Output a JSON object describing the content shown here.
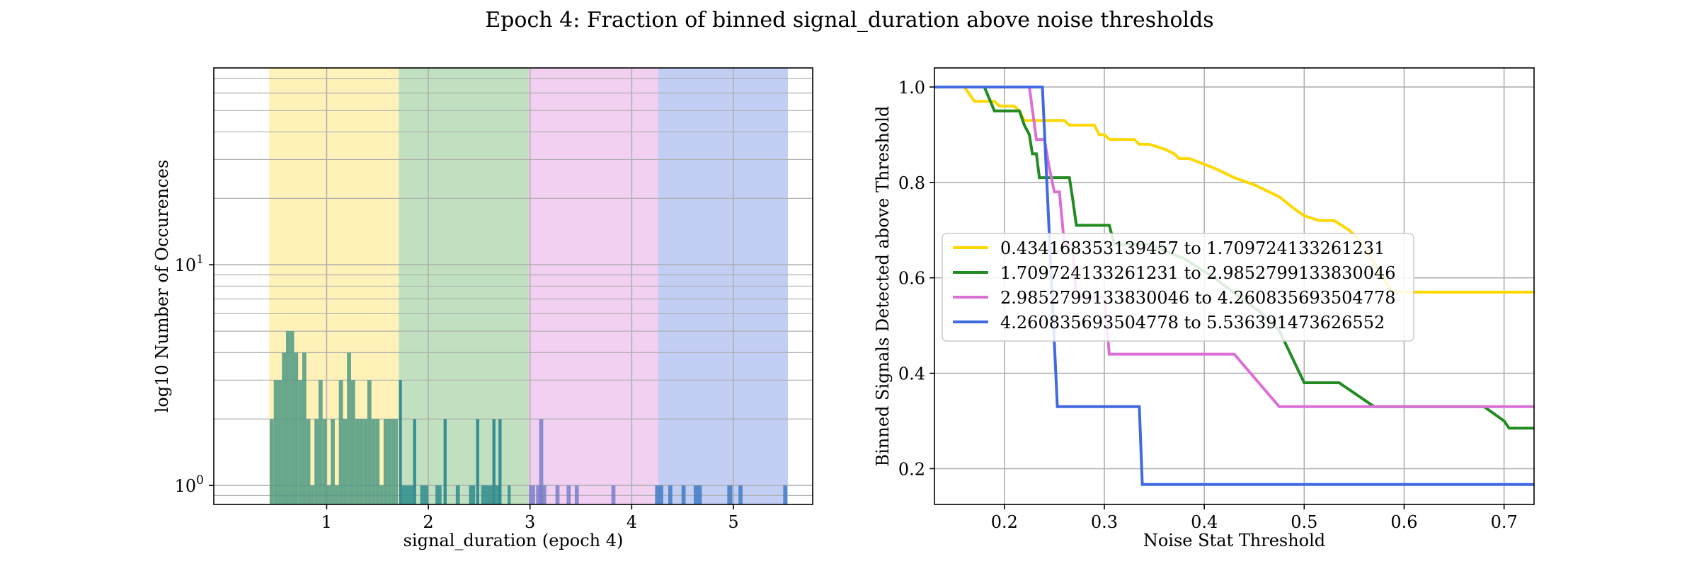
{
  "figure": {
    "title": "Epoch 4: Fraction of binned signal_duration above noise thresholds"
  },
  "chart_data": [
    {
      "type": "bar",
      "subtype": "histogram",
      "xlabel": "signal_duration (epoch 4)",
      "ylabel": "log10 Number of Occurences",
      "yscale": "log",
      "xlim": [
        -0.11,
        5.78
      ],
      "ylim": [
        0.82,
        78
      ],
      "xticks": [
        1,
        2,
        3,
        4,
        5
      ],
      "yticks": [
        {
          "value": 1,
          "label": "10^0"
        },
        {
          "value": 10,
          "label": "10^1"
        }
      ],
      "grid": true,
      "bands": [
        {
          "from": 0.434168353139457,
          "to": 1.709724133261231,
          "color": "#FFE880"
        },
        {
          "from": 1.709724133261231,
          "to": 2.9852799133830046,
          "color": "#8DC68D"
        },
        {
          "from": 2.9852799133830046,
          "to": 4.260835693504778,
          "color": "#E5A9E5"
        },
        {
          "from": 4.260835693504778,
          "to": 5.536391473626552,
          "color": "#8FA6EB"
        }
      ],
      "histograms": [
        {
          "color": "#4d9a84",
          "bars": [
            {
              "x": 0.44,
              "w": 0.04,
              "v": 2
            },
            {
              "x": 0.48,
              "w": 0.04,
              "v": 3
            },
            {
              "x": 0.52,
              "w": 0.04,
              "v": 3
            },
            {
              "x": 0.56,
              "w": 0.04,
              "v": 4
            },
            {
              "x": 0.6,
              "w": 0.04,
              "v": 5
            },
            {
              "x": 0.64,
              "w": 0.04,
              "v": 5
            },
            {
              "x": 0.68,
              "w": 0.04,
              "v": 4
            },
            {
              "x": 0.72,
              "w": 0.04,
              "v": 3
            },
            {
              "x": 0.76,
              "w": 0.04,
              "v": 4
            },
            {
              "x": 0.8,
              "w": 0.04,
              "v": 2
            },
            {
              "x": 0.84,
              "w": 0.04,
              "v": 1
            },
            {
              "x": 0.88,
              "w": 0.04,
              "v": 2
            },
            {
              "x": 0.92,
              "w": 0.04,
              "v": 3
            },
            {
              "x": 0.96,
              "w": 0.04,
              "v": 2
            },
            {
              "x": 1.0,
              "w": 0.04,
              "v": 1
            },
            {
              "x": 1.04,
              "w": 0.04,
              "v": 2
            },
            {
              "x": 1.08,
              "w": 0.04,
              "v": 1
            },
            {
              "x": 1.12,
              "w": 0.04,
              "v": 3
            },
            {
              "x": 1.16,
              "w": 0.04,
              "v": 2
            },
            {
              "x": 1.2,
              "w": 0.04,
              "v": 4
            },
            {
              "x": 1.24,
              "w": 0.04,
              "v": 3
            },
            {
              "x": 1.28,
              "w": 0.04,
              "v": 2
            },
            {
              "x": 1.32,
              "w": 0.04,
              "v": 2
            },
            {
              "x": 1.36,
              "w": 0.04,
              "v": 2
            },
            {
              "x": 1.4,
              "w": 0.04,
              "v": 3
            },
            {
              "x": 1.44,
              "w": 0.04,
              "v": 2
            },
            {
              "x": 1.48,
              "w": 0.04,
              "v": 2
            },
            {
              "x": 1.52,
              "w": 0.04,
              "v": 1
            },
            {
              "x": 1.56,
              "w": 0.04,
              "v": 2
            },
            {
              "x": 1.6,
              "w": 0.04,
              "v": 2
            },
            {
              "x": 1.64,
              "w": 0.04,
              "v": 2
            },
            {
              "x": 1.68,
              "w": 0.02,
              "v": 2
            }
          ]
        },
        {
          "color": "#1f7f8a",
          "bars": [
            {
              "x": 1.71,
              "w": 0.03,
              "v": 3
            },
            {
              "x": 1.85,
              "w": 0.03,
              "v": 2
            },
            {
              "x": 2.15,
              "w": 0.03,
              "v": 2
            },
            {
              "x": 2.47,
              "w": 0.03,
              "v": 2
            },
            {
              "x": 2.63,
              "w": 0.03,
              "v": 2
            },
            {
              "x": 2.69,
              "w": 0.03,
              "v": 2
            }
          ]
        },
        {
          "color": "#2e8c8c",
          "bars": [
            {
              "x": 1.73,
              "w": 0.12,
              "v": 1
            },
            {
              "x": 1.92,
              "w": 0.08,
              "v": 1
            },
            {
              "x": 2.07,
              "w": 0.06,
              "v": 1
            },
            {
              "x": 2.27,
              "w": 0.04,
              "v": 1
            },
            {
              "x": 2.4,
              "w": 0.06,
              "v": 1
            },
            {
              "x": 2.52,
              "w": 0.11,
              "v": 1
            },
            {
              "x": 2.66,
              "w": 0.05,
              "v": 1
            },
            {
              "x": 2.78,
              "w": 0.03,
              "v": 1
            }
          ]
        },
        {
          "color": "#7b7fc9",
          "bars": [
            {
              "x": 3.09,
              "w": 0.04,
              "v": 2
            },
            {
              "x": 2.99,
              "w": 0.06,
              "v": 1
            },
            {
              "x": 3.06,
              "w": 0.1,
              "v": 1
            },
            {
              "x": 3.25,
              "w": 0.04,
              "v": 1
            },
            {
              "x": 3.36,
              "w": 0.04,
              "v": 1
            },
            {
              "x": 3.44,
              "w": 0.04,
              "v": 1
            },
            {
              "x": 3.8,
              "w": 0.04,
              "v": 1
            }
          ]
        },
        {
          "color": "#3f7dc4",
          "bars": [
            {
              "x": 4.23,
              "w": 0.08,
              "v": 1
            },
            {
              "x": 4.36,
              "w": 0.04,
              "v": 1
            },
            {
              "x": 4.49,
              "w": 0.04,
              "v": 1
            },
            {
              "x": 4.61,
              "w": 0.08,
              "v": 1
            },
            {
              "x": 4.94,
              "w": 0.05,
              "v": 1
            },
            {
              "x": 5.05,
              "w": 0.04,
              "v": 1
            },
            {
              "x": 5.49,
              "w": 0.04,
              "v": 1
            }
          ]
        }
      ]
    },
    {
      "type": "line",
      "xlabel": "Noise Stat Threshold",
      "ylabel": "Binned Signals Detected above Threshold",
      "xlim": [
        0.13,
        0.73
      ],
      "ylim": [
        0.125,
        1.04
      ],
      "xticks": [
        0.2,
        0.3,
        0.4,
        0.5,
        0.6,
        0.7
      ],
      "yticks": [
        0.2,
        0.4,
        0.6,
        0.8,
        1.0
      ],
      "grid": true,
      "legend_placement": "center-left",
      "series": [
        {
          "name": "0.434168353139457 to 1.709724133261231",
          "color": "#FFD700",
          "points": [
            [
              0.13,
              1.0
            ],
            [
              0.16,
              1.0
            ],
            [
              0.17,
              0.97
            ],
            [
              0.19,
              0.97
            ],
            [
              0.195,
              0.96
            ],
            [
              0.21,
              0.96
            ],
            [
              0.215,
              0.95
            ],
            [
              0.22,
              0.93
            ],
            [
              0.26,
              0.93
            ],
            [
              0.265,
              0.92
            ],
            [
              0.29,
              0.92
            ],
            [
              0.295,
              0.9
            ],
            [
              0.3,
              0.9
            ],
            [
              0.305,
              0.89
            ],
            [
              0.33,
              0.89
            ],
            [
              0.335,
              0.88
            ],
            [
              0.345,
              0.88
            ],
            [
              0.36,
              0.87
            ],
            [
              0.37,
              0.86
            ],
            [
              0.375,
              0.85
            ],
            [
              0.385,
              0.85
            ],
            [
              0.41,
              0.83
            ],
            [
              0.43,
              0.81
            ],
            [
              0.45,
              0.795
            ],
            [
              0.475,
              0.77
            ],
            [
              0.49,
              0.745
            ],
            [
              0.5,
              0.73
            ],
            [
              0.515,
              0.72
            ],
            [
              0.53,
              0.72
            ],
            [
              0.545,
              0.7
            ],
            [
              0.555,
              0.68
            ],
            [
              0.565,
              0.65
            ],
            [
              0.575,
              0.61
            ],
            [
              0.585,
              0.58
            ],
            [
              0.59,
              0.57
            ],
            [
              0.73,
              0.57
            ]
          ]
        },
        {
          "name": "1.709724133261231 to 2.9852799133830046",
          "color": "#228B22",
          "points": [
            [
              0.13,
              1.0
            ],
            [
              0.18,
              1.0
            ],
            [
              0.19,
              0.95
            ],
            [
              0.215,
              0.95
            ],
            [
              0.22,
              0.92
            ],
            [
              0.225,
              0.9
            ],
            [
              0.228,
              0.86
            ],
            [
              0.232,
              0.86
            ],
            [
              0.235,
              0.81
            ],
            [
              0.265,
              0.81
            ],
            [
              0.268,
              0.77
            ],
            [
              0.272,
              0.71
            ],
            [
              0.305,
              0.71
            ],
            [
              0.31,
              0.67
            ],
            [
              0.345,
              0.67
            ],
            [
              0.38,
              0.64
            ],
            [
              0.41,
              0.6
            ],
            [
              0.435,
              0.56
            ],
            [
              0.455,
              0.53
            ],
            [
              0.475,
              0.49
            ],
            [
              0.5,
              0.38
            ],
            [
              0.535,
              0.38
            ],
            [
              0.57,
              0.33
            ],
            [
              0.68,
              0.33
            ],
            [
              0.7,
              0.3
            ],
            [
              0.705,
              0.285
            ],
            [
              0.73,
              0.285
            ]
          ]
        },
        {
          "name": "2.9852799133830046 to 4.260835693504778",
          "color": "#DA70D6",
          "points": [
            [
              0.13,
              1.0
            ],
            [
              0.225,
              1.0
            ],
            [
              0.232,
              0.89
            ],
            [
              0.24,
              0.89
            ],
            [
              0.245,
              0.83
            ],
            [
              0.25,
              0.78
            ],
            [
              0.255,
              0.78
            ],
            [
              0.26,
              0.67
            ],
            [
              0.268,
              0.67
            ],
            [
              0.272,
              0.56
            ],
            [
              0.3,
              0.56
            ],
            [
              0.305,
              0.44
            ],
            [
              0.43,
              0.44
            ],
            [
              0.475,
              0.33
            ],
            [
              0.73,
              0.33
            ]
          ]
        },
        {
          "name": "4.260835693504778 to 5.536391473626552",
          "color": "#4169E1",
          "points": [
            [
              0.13,
              1.0
            ],
            [
              0.238,
              1.0
            ],
            [
              0.253,
              0.33
            ],
            [
              0.335,
              0.33
            ],
            [
              0.338,
              0.167
            ],
            [
              0.73,
              0.167
            ]
          ]
        }
      ]
    }
  ]
}
